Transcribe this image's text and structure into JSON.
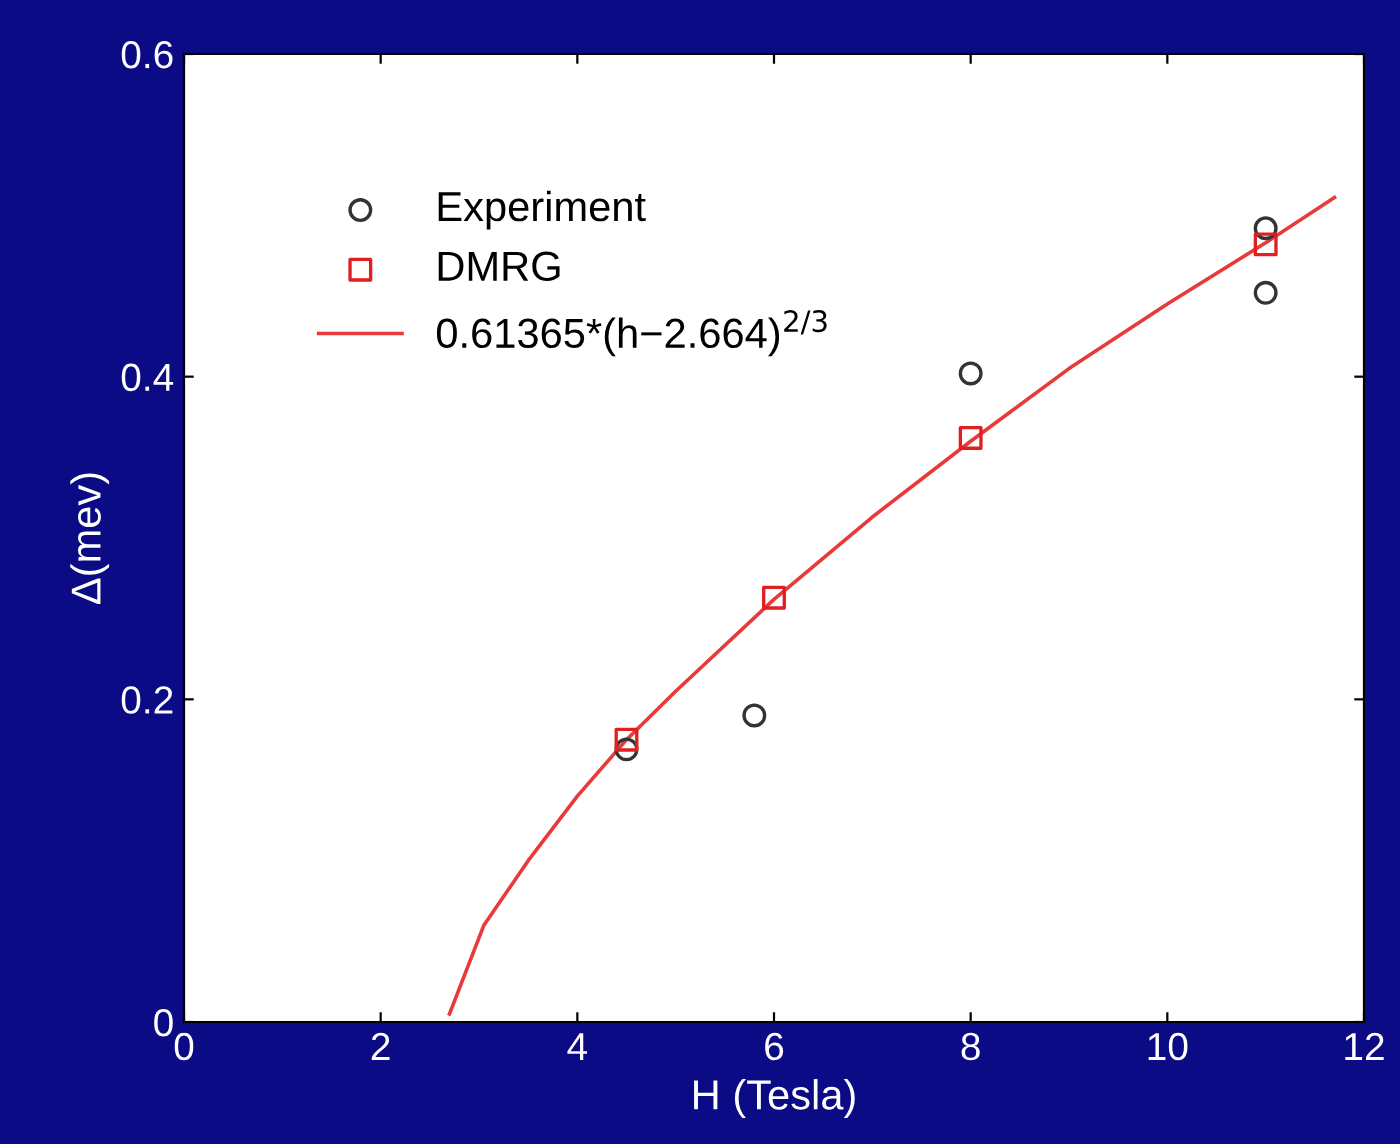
{
  "chart_data": {
    "type": "scatter",
    "xlabel": "H (Tesla)",
    "ylabel": "Δ(mev)",
    "xlim": [
      0,
      12
    ],
    "xticks": [
      0,
      2,
      4,
      6,
      8,
      10,
      12
    ],
    "ylim": [
      0,
      0.6
    ],
    "yticks": [
      0,
      0.2,
      0.4,
      0.6
    ],
    "grid": false,
    "legend": "top left",
    "series": [
      {
        "name": "Experiment",
        "marker": "circle",
        "color": "#333333",
        "x": [
          4.5,
          5.8,
          8,
          11,
          11
        ],
        "values": [
          0.169,
          0.19,
          0.402,
          0.492,
          0.452
        ]
      },
      {
        "name": "DMRG",
        "marker": "square",
        "color": "#e02020",
        "x": [
          4.5,
          6,
          8,
          11
        ],
        "values": [
          0.175,
          0.263,
          0.362,
          0.482
        ]
      },
      {
        "name": "0.61365*(h−2.664)$^{2/3}$",
        "type": "line",
        "marker": "none",
        "line_style": "solid",
        "color": "#e83a3a",
        "x": [
          2.7,
          3.05,
          3.5,
          4,
          4.5,
          5,
          6,
          7,
          8,
          9,
          10,
          11,
          11.7
        ],
        "values": [
          0.005,
          0.06,
          0.1,
          0.14,
          0.175,
          0.205,
          0.262,
          0.313,
          0.36,
          0.405,
          0.445,
          0.483,
          0.511
        ]
      }
    ]
  }
}
